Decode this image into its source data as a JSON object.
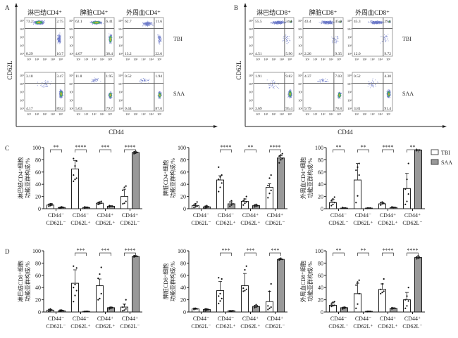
{
  "figure": {
    "panel_letters": [
      "A",
      "B",
      "C",
      "D"
    ]
  },
  "flow_panels": [
    {
      "letter": "A",
      "y_axis_label": "CD62L",
      "x_axis_label": "CD44",
      "row_labels": [
        "TBI",
        "SAA"
      ],
      "column_titles": [
        "淋巴结CD4⁺",
        "脾脏CD4⁺",
        "外周血CD4⁺"
      ],
      "tick_labels": [
        "10¹",
        "10²",
        "10³",
        "10⁴",
        "10⁵"
      ],
      "plots": [
        {
          "row": "TBI",
          "tissue": "淋巴结CD4⁺",
          "quadrants": {
            "ul": "73.2",
            "ur": "2.75",
            "ll": "8.29",
            "lr": "16.7"
          },
          "density": "high-ul"
        },
        {
          "row": "TBI",
          "tissue": "脾脏CD4⁺",
          "quadrants": {
            "ul": "62.1",
            "ur": "6.41",
            "ll": "4.07",
            "lr": "38.4"
          },
          "density": "ul-lr"
        },
        {
          "row": "TBI",
          "tissue": "外周血CD4⁺",
          "quadrants": {
            "ul": "62.7",
            "ur": "11.6",
            "ll": "13.2",
            "lr": "22.6"
          },
          "density": "sparse-ul"
        },
        {
          "row": "SAA",
          "tissue": "淋巴结CD4⁺",
          "quadrants": {
            "ul": "3.18",
            "ur": "3.47",
            "ll": "4.17",
            "lr": "89.2"
          },
          "density": "high-lr"
        },
        {
          "row": "SAA",
          "tissue": "脾脏CD4⁺",
          "quadrants": {
            "ul": "11.8",
            "ur": "1.95",
            "ll": "5.63",
            "lr": "79.7"
          },
          "density": "mid-lr"
        },
        {
          "row": "SAA",
          "tissue": "外周血CD4⁺",
          "quadrants": {
            "ul": "0.52",
            "ur": "1.94",
            "ll": "0.44",
            "lr": "87.0"
          },
          "density": "mid-lr"
        }
      ]
    },
    {
      "letter": "B",
      "y_axis_label": "CD62L",
      "x_axis_label": "CD44",
      "row_labels": [
        "TBI",
        "SAA"
      ],
      "column_titles": [
        "淋巴结CD8⁺",
        "脾脏CD8⁺",
        "外周血CD8⁺"
      ],
      "tick_labels": [
        "10¹",
        "10²",
        "10³",
        "10⁴",
        "10⁵"
      ],
      "plots": [
        {
          "row": "TBI",
          "tissue": "淋巴结CD8⁺",
          "quadrants": {
            "ul": "55.5",
            "ur": "34.1",
            "ll": "4.51",
            "lr": "5.90"
          },
          "density": "top-band"
        },
        {
          "row": "TBI",
          "tissue": "脾脏CD8⁺",
          "quadrants": {
            "ul": "43.4",
            "ur": "45.0",
            "ll": "2.26",
            "lr": "9.35"
          },
          "density": "top-band"
        },
        {
          "row": "TBI",
          "tissue": "外周血CD8⁺",
          "quadrants": {
            "ul": "45.3",
            "ur": "29.1",
            "ll": "12.0",
            "lr": "9.72"
          },
          "density": "top-band"
        },
        {
          "row": "SAA",
          "tissue": "淋巴结CD8⁺",
          "quadrants": {
            "ul": "1.91",
            "ur": "9.82",
            "ll": "3.69",
            "lr": "95.4"
          },
          "density": "high-lr"
        },
        {
          "row": "SAA",
          "tissue": "脾脏CD8⁺",
          "quadrants": {
            "ul": "4.37",
            "ur": "7.03",
            "ll": "9.79",
            "lr": "78.8"
          },
          "density": "mid-lr"
        },
        {
          "row": "SAA",
          "tissue": "外周血CD8⁺",
          "quadrants": {
            "ul": "0.52",
            "ur": "4.30",
            "ll": "3.81",
            "lr": "91.4"
          },
          "density": "high-lr"
        }
      ]
    }
  ],
  "legend": {
    "items": [
      {
        "name": "TBI",
        "color": "#ffffff"
      },
      {
        "name": "SAA",
        "color": "#999999"
      }
    ]
  },
  "chart_data": [
    {
      "type": "bar",
      "panel": "C",
      "title": "",
      "ylabel": "淋巴结CD4⁺细胞功能亚群构成/%",
      "ylim": [
        0,
        100
      ],
      "yticks": [
        0,
        20,
        40,
        60,
        80,
        100
      ],
      "categories": [
        [
          "CD44⁻",
          "CD62L⁻"
        ],
        [
          "CD44⁻",
          "CD62L⁺"
        ],
        [
          "CD44⁺",
          "CD62L⁺"
        ],
        [
          "CD44⁺",
          "CD62L⁻"
        ]
      ],
      "series": [
        {
          "name": "TBI",
          "values": [
            6,
            65,
            9,
            20
          ],
          "errors": [
            2,
            14,
            2,
            12
          ],
          "points": [
            [
              4,
              5,
              6,
              7,
              8,
              8
            ],
            [
              45,
              48,
              50,
              55,
              70,
              78,
              82
            ],
            [
              7,
              8,
              9,
              10,
              11,
              12
            ],
            [
              8,
              9,
              12,
              30,
              35,
              37
            ]
          ]
        },
        {
          "name": "SAA",
          "values": [
            2,
            2,
            4,
            92
          ],
          "errors": [
            1,
            1,
            1,
            1
          ],
          "points": [
            [
              1,
              2,
              2,
              2,
              3
            ],
            [
              1,
              2,
              2,
              3
            ],
            [
              3,
              4,
              4,
              5
            ],
            [
              90,
              91,
              92,
              93,
              94
            ]
          ]
        }
      ],
      "significance": [
        "**",
        "****",
        "***",
        "****"
      ]
    },
    {
      "type": "bar",
      "panel": "C2",
      "title": "",
      "ylabel": "脾脏CD4⁺细胞功能亚群构成/%",
      "ylim": [
        0,
        100
      ],
      "yticks": [
        0,
        20,
        40,
        60,
        80,
        100
      ],
      "categories": [
        [
          "CD44⁻",
          "CD62L⁻"
        ],
        [
          "CD44⁻",
          "CD62L⁺"
        ],
        [
          "CD44⁺",
          "CD62L⁺"
        ],
        [
          "CD44⁺",
          "CD62L⁻"
        ]
      ],
      "series": [
        {
          "name": "TBI",
          "values": [
            5,
            47,
            12,
            35
          ],
          "errors": [
            3,
            7,
            4,
            6
          ],
          "points": [
            [
              2,
              3,
              4,
              6,
              8,
              11
            ],
            [
              28,
              35,
              42,
              48,
              52,
              55,
              68
            ],
            [
              6,
              9,
              11,
              13,
              16,
              20
            ],
            [
              18,
              25,
              30,
              38,
              50,
              55
            ]
          ]
        },
        {
          "name": "SAA",
          "values": [
            3,
            8,
            5,
            83
          ],
          "errors": [
            1,
            3,
            1,
            4
          ],
          "points": [
            [
              1,
              2,
              3,
              4,
              5
            ],
            [
              4,
              6,
              8,
              11,
              13
            ],
            [
              3,
              4,
              5,
              6,
              7
            ],
            [
              75,
              80,
              82,
              86,
              88,
              90
            ]
          ]
        }
      ],
      "significance": [
        "",
        "****",
        "**",
        "****"
      ]
    },
    {
      "type": "bar",
      "panel": "C3",
      "title": "",
      "ylabel": "外周血CD4⁺细胞功能亚群构成/%",
      "ylim": [
        0,
        100
      ],
      "yticks": [
        0,
        20,
        40,
        60,
        80,
        100
      ],
      "categories": [
        [
          "CD44⁻",
          "CD62L⁻"
        ],
        [
          "CD44⁻",
          "CD62L⁺"
        ],
        [
          "CD44⁺",
          "CD62L⁺"
        ],
        [
          "CD44⁺",
          "CD62L⁻"
        ]
      ],
      "series": [
        {
          "name": "TBI",
          "values": [
            10,
            47,
            8,
            33
          ],
          "errors": [
            5,
            27,
            2,
            25
          ],
          "points": [
            [
              5,
              7,
              10,
              13,
              16,
              19
            ],
            [
              10,
              21,
              55,
              63,
              68,
              74
            ],
            [
              6,
              8,
              9,
              10,
              11
            ],
            [
              7,
              12,
              24,
              32,
              48,
              74
            ]
          ]
        },
        {
          "name": "SAA",
          "values": [
            1,
            1,
            2,
            96
          ],
          "errors": [
            0.5,
            0.5,
            0.5,
            0.5
          ],
          "points": [
            [
              1,
              1,
              1,
              2
            ],
            [
              0.5,
              1,
              1,
              1
            ],
            [
              2,
              2,
              2,
              3
            ],
            [
              95,
              96,
              96,
              97
            ]
          ]
        }
      ],
      "significance": [
        "**",
        "**",
        "****",
        "**"
      ]
    },
    {
      "type": "bar",
      "panel": "D",
      "title": "",
      "ylabel": "淋巴结CD8⁺细胞功能亚群构成/%",
      "ylim": [
        0,
        100
      ],
      "yticks": [
        0,
        20,
        40,
        60,
        80,
        100
      ],
      "categories": [
        [
          "CD44⁻",
          "CD62L⁻"
        ],
        [
          "CD44⁻",
          "CD62L⁺"
        ],
        [
          "CD44⁺",
          "CD62L⁺"
        ],
        [
          "CD44⁺",
          "CD62L⁻"
        ]
      ],
      "series": [
        {
          "name": "TBI",
          "values": [
            3,
            47,
            43,
            8
          ],
          "errors": [
            1,
            22,
            11,
            5
          ],
          "points": [
            [
              1,
              2,
              3,
              4,
              5
            ],
            [
              17,
              27,
              35,
              40,
              45,
              72,
              75
            ],
            [
              20,
              22,
              30,
              55,
              62,
              73
            ],
            [
              2,
              3,
              5,
              8,
              12,
              20
            ]
          ]
        },
        {
          "name": "SAA",
          "values": [
            2,
            1,
            7,
            91
          ],
          "errors": [
            1,
            0.5,
            1,
            1
          ],
          "points": [
            [
              1,
              2,
              2,
              3,
              3
            ],
            [
              0.5,
              1,
              1,
              1
            ],
            [
              5,
              6,
              7,
              7,
              8
            ],
            [
              90,
              91,
              91,
              92,
              92
            ]
          ]
        }
      ],
      "significance": [
        "",
        "***",
        "***",
        "****"
      ]
    },
    {
      "type": "bar",
      "panel": "D2",
      "title": "",
      "ylabel": "脾脏CD8⁺细胞功能亚群构成/%",
      "ylim": [
        0,
        100
      ],
      "yticks": [
        0,
        20,
        40,
        60,
        80,
        100
      ],
      "categories": [
        [
          "CD44⁻",
          "CD62L⁻"
        ],
        [
          "CD44⁻",
          "CD62L⁺"
        ],
        [
          "CD44⁺",
          "CD62L⁺"
        ],
        [
          "CD44⁺",
          "CD62L⁻"
        ]
      ],
      "series": [
        {
          "name": "TBI",
          "values": [
            5,
            35,
            43,
            17
          ],
          "errors": [
            1,
            15,
            20,
            17
          ],
          "points": [
            [
              4,
              5,
              5,
              6,
              6
            ],
            [
              14,
              18,
              22,
              26,
              30,
              54,
              56
            ],
            [
              34,
              35,
              37,
              39,
              69,
              75
            ],
            [
              4,
              6,
              8,
              10,
              34,
              46
            ]
          ]
        },
        {
          "name": "SAA",
          "values": [
            4,
            2,
            9,
            86
          ],
          "errors": [
            1,
            0.5,
            2,
            1
          ],
          "points": [
            [
              2,
              3,
              4,
              5,
              5
            ],
            [
              1,
              1,
              2,
              2
            ],
            [
              7,
              8,
              9,
              10,
              12
            ],
            [
              85,
              86,
              86,
              87,
              88
            ]
          ]
        }
      ],
      "significance": [
        "",
        "***",
        "***",
        "***"
      ]
    },
    {
      "type": "bar",
      "panel": "D3",
      "title": "",
      "ylabel": "外周血CD8⁺细胞功能亚群构成/%",
      "ylim": [
        0,
        100
      ],
      "yticks": [
        0,
        20,
        40,
        60,
        80,
        100
      ],
      "categories": [
        [
          "CD44⁻",
          "CD62L⁻"
        ],
        [
          "CD44⁻",
          "CD62L⁺"
        ],
        [
          "CD44⁺",
          "CD62L⁺"
        ],
        [
          "CD44⁺",
          "CD62L⁻"
        ]
      ],
      "series": [
        {
          "name": "TBI",
          "values": [
            11,
            30,
            37,
            20
          ],
          "errors": [
            4,
            17,
            9,
            12
          ],
          "points": [
            [
              9,
              10,
              11,
              13,
              16,
              17
            ],
            [
              6,
              13,
              30,
              44,
              49,
              52
            ],
            [
              30,
              32,
              34,
              37,
              46,
              54
            ],
            [
              6,
              10,
              18,
              20,
              26,
              40
            ]
          ]
        },
        {
          "name": "SAA",
          "values": [
            7,
            1,
            6,
            89
          ],
          "errors": [
            1,
            0.5,
            1,
            2
          ],
          "points": [
            [
              5,
              6,
              7,
              7,
              8
            ],
            [
              0.5,
              1,
              1,
              1
            ],
            [
              5,
              6,
              6,
              7
            ],
            [
              87,
              88,
              89,
              90,
              92
            ]
          ]
        }
      ],
      "significance": [
        "**",
        "**",
        "****",
        "****"
      ]
    }
  ]
}
